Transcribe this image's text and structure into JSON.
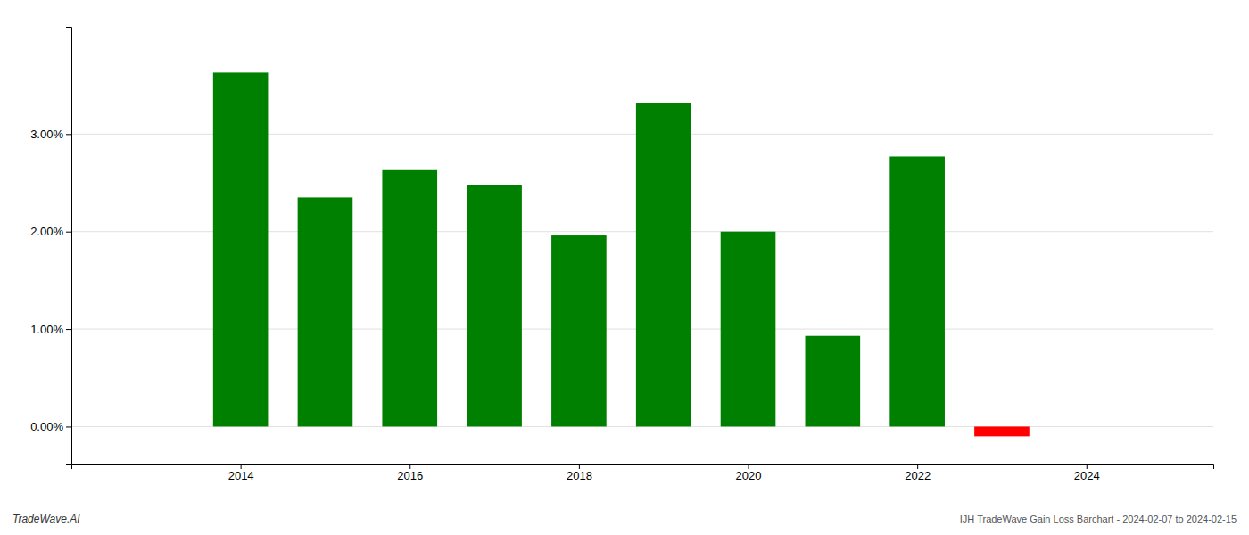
{
  "chart_data": {
    "type": "bar",
    "x": [
      2014,
      2015,
      2016,
      2017,
      2018,
      2019,
      2020,
      2021,
      2022,
      2023
    ],
    "values": [
      0.0363,
      0.0235,
      0.0263,
      0.0248,
      0.0196,
      0.0332,
      0.02,
      0.0093,
      0.0277,
      -0.001
    ],
    "colors": [
      "#008000",
      "#008000",
      "#008000",
      "#008000",
      "#008000",
      "#008000",
      "#008000",
      "#008000",
      "#008000",
      "#ff0000"
    ],
    "xlim": [
      2012.0,
      2025.5
    ],
    "xticks": [
      2014,
      2016,
      2018,
      2020,
      2022,
      2024
    ],
    "ylim": [
      -0.0038,
      0.041
    ],
    "yticks": [
      {
        "value": 0.0,
        "label": "0.00%"
      },
      {
        "value": 0.01,
        "label": "1.00%"
      },
      {
        "value": 0.02,
        "label": "2.00%"
      },
      {
        "value": 0.03,
        "label": "3.00%"
      }
    ],
    "grid": true,
    "annotations": [
      "TradeWave.AI",
      "IJH TradeWave Gain Loss Barchart - 2024-02-07 to 2024-02-15"
    ]
  }
}
